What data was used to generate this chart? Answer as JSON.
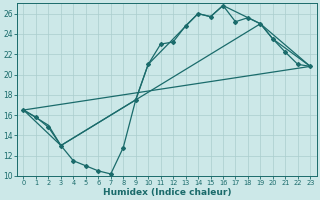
{
  "xlabel": "Humidex (Indice chaleur)",
  "bg_color": "#cce8e8",
  "line_color": "#1a6b6b",
  "grid_color": "#aacece",
  "xlim": [
    -0.5,
    23.5
  ],
  "ylim": [
    10,
    27
  ],
  "xticks": [
    0,
    1,
    2,
    3,
    4,
    5,
    6,
    7,
    8,
    9,
    10,
    11,
    12,
    13,
    14,
    15,
    16,
    17,
    18,
    19,
    20,
    21,
    22,
    23
  ],
  "yticks": [
    10,
    12,
    14,
    16,
    18,
    20,
    22,
    24,
    26
  ],
  "line1_x": [
    0,
    1,
    2,
    3,
    4,
    5,
    6,
    7,
    8,
    9,
    10,
    11,
    12,
    13,
    14,
    15,
    16,
    17,
    18,
    19,
    20,
    21,
    22,
    23
  ],
  "line1_y": [
    16.5,
    15.8,
    14.8,
    13.0,
    11.5,
    11.0,
    10.5,
    10.2,
    12.8,
    17.5,
    21.0,
    23.0,
    23.2,
    24.8,
    26.0,
    25.7,
    26.8,
    25.2,
    25.6,
    25.0,
    23.5,
    22.2,
    21.0,
    20.8
  ],
  "line2_x": [
    0,
    2,
    3,
    9,
    10,
    14,
    15,
    16,
    19,
    20,
    23
  ],
  "line2_y": [
    16.5,
    15.0,
    13.0,
    17.5,
    21.0,
    26.0,
    25.7,
    26.8,
    25.0,
    23.5,
    20.8
  ],
  "line3_x": [
    0,
    23
  ],
  "line3_y": [
    16.5,
    20.8
  ],
  "line4_x": [
    0,
    3,
    9,
    19,
    23
  ],
  "line4_y": [
    16.5,
    13.0,
    17.5,
    25.0,
    20.8
  ]
}
